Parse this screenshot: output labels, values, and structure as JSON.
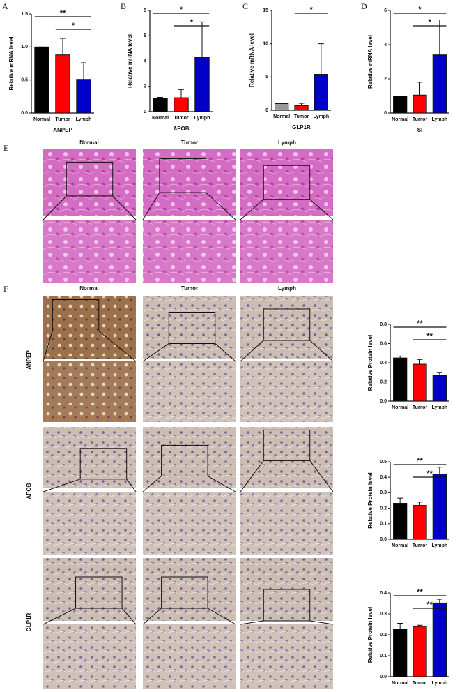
{
  "chart_data": [
    {
      "type": "bar",
      "panel": "A",
      "ylabel": "Relative mRNA level",
      "xlabel": "ANPEP",
      "categories": [
        "Normal",
        "Tumor",
        "Lymph"
      ],
      "values": [
        1.0,
        0.88,
        0.51
      ],
      "errors": [
        0,
        0.25,
        0.25
      ],
      "colors": [
        "#000000",
        "#ff0000",
        "#0000c8"
      ],
      "ylim": [
        0,
        1.5
      ],
      "yticks": [
        {
          "value": 0,
          "label": "0.0"
        },
        0.5,
        {
          "value": 1,
          "label": "1.0"
        },
        1.5
      ],
      "annotations": [
        {
          "text": "**",
          "span": [
            "Normal",
            "Lymph"
          ]
        },
        {
          "text": "*",
          "span": [
            "Tumor",
            "Lymph"
          ]
        }
      ]
    },
    {
      "type": "bar",
      "panel": "B",
      "ylabel": "Relative mRNA level",
      "xlabel": "APOB",
      "categories": [
        "Normal",
        "Tumor",
        "Lymph"
      ],
      "values": [
        1.05,
        1.1,
        4.3
      ],
      "errors": [
        0.08,
        0.65,
        2.8
      ],
      "colors": [
        "#000000",
        "#ff0000",
        "#0000c8"
      ],
      "ylim": [
        0,
        8
      ],
      "yticks": [
        0,
        2,
        4,
        6,
        8
      ],
      "annotations": [
        {
          "text": "*",
          "span": [
            "Normal",
            "Lymph"
          ]
        },
        {
          "text": "*",
          "span": [
            "Tumor",
            "Lymph"
          ]
        }
      ]
    },
    {
      "type": "bar",
      "panel": "C",
      "ylabel": "Relative mRNA level",
      "xlabel": "GLP1R",
      "categories": [
        "Normal",
        "Tumor",
        "Lymph"
      ],
      "values": [
        1.0,
        0.7,
        5.4
      ],
      "errors": [
        0.05,
        0.35,
        4.6
      ],
      "colors": [
        "#999999",
        "#ff0000",
        "#0000c8"
      ],
      "ylim": [
        0,
        15
      ],
      "yticks": [
        0,
        5,
        10,
        15
      ],
      "annotations": [
        {
          "text": "*",
          "span": [
            "Tumor",
            "Lymph"
          ]
        }
      ]
    },
    {
      "type": "bar",
      "panel": "D",
      "ylabel": "Relative mRNA level",
      "xlabel": "SI",
      "categories": [
        "Normal",
        "Tumor",
        "Lymph"
      ],
      "values": [
        1.0,
        1.05,
        3.4
      ],
      "errors": [
        0,
        0.75,
        2.05
      ],
      "colors": [
        "#000000",
        "#ff0000",
        "#0000c8"
      ],
      "ylim": [
        0,
        6
      ],
      "yticks": [
        0,
        2,
        4,
        6
      ],
      "annotations": [
        {
          "text": "*",
          "span": [
            "Normal",
            "Lymph"
          ]
        },
        {
          "text": "*",
          "span": [
            "Tumor",
            "Lymph"
          ]
        }
      ]
    },
    {
      "type": "bar",
      "ylabel": "Relative Protein level",
      "categories": [
        "Normal",
        "Tumor",
        "Lymph"
      ],
      "values": [
        0.45,
        0.385,
        0.27
      ],
      "errors": [
        0.02,
        0.05,
        0.03
      ],
      "colors": [
        "#000000",
        "#ff0000",
        "#0000c8"
      ],
      "ylim": [
        0,
        0.8
      ],
      "yticks": [
        {
          "value": 0,
          "label": "0.0"
        },
        0.2,
        0.4,
        0.6,
        0.8
      ],
      "annotations": [
        {
          "text": "**",
          "span": [
            "Normal",
            "Lymph"
          ]
        },
        {
          "text": "**",
          "span": [
            "Tumor",
            "Lymph"
          ]
        }
      ]
    },
    {
      "type": "bar",
      "ylabel": "Relative Protein level",
      "categories": [
        "Normal",
        "Tumor",
        "Lymph"
      ],
      "values": [
        0.232,
        0.218,
        0.42
      ],
      "errors": [
        0.033,
        0.022,
        0.045
      ],
      "colors": [
        "#000000",
        "#ff0000",
        "#0000c8"
      ],
      "ylim": [
        0,
        0.5
      ],
      "yticks": [
        {
          "value": 0,
          "label": "0.0"
        },
        0.1,
        0.2,
        0.3,
        0.4,
        0.5
      ],
      "annotations": [
        {
          "text": "**",
          "span": [
            "Normal",
            "Lymph"
          ]
        },
        {
          "text": "**",
          "span": [
            "Tumor",
            "Lymph"
          ]
        }
      ]
    },
    {
      "type": "bar",
      "ylabel": "Relative Protein level",
      "categories": [
        "Normal",
        "Tumor",
        "Lymph"
      ],
      "values": [
        0.228,
        0.24,
        0.352
      ],
      "errors": [
        0.027,
        0.006,
        0.018
      ],
      "colors": [
        "#000000",
        "#ff0000",
        "#0000c8"
      ],
      "ylim": [
        0,
        0.4
      ],
      "yticks": [
        {
          "value": 0,
          "label": "0.0"
        },
        0.1,
        0.2,
        0.3,
        0.4
      ],
      "annotations": [
        {
          "text": "**",
          "span": [
            "Normal",
            "Lymph"
          ]
        },
        {
          "text": "**",
          "span": [
            "Tumor",
            "Lymph"
          ]
        }
      ]
    }
  ],
  "panel_e": {
    "label": "E",
    "columns": [
      "Normal",
      "Tumor",
      "Lymph"
    ]
  },
  "panel_f": {
    "label": "F",
    "columns": [
      "Normal",
      "Tumor",
      "Lymph"
    ],
    "rows": [
      "ANPEP",
      "APOB",
      "GLP1R"
    ]
  }
}
